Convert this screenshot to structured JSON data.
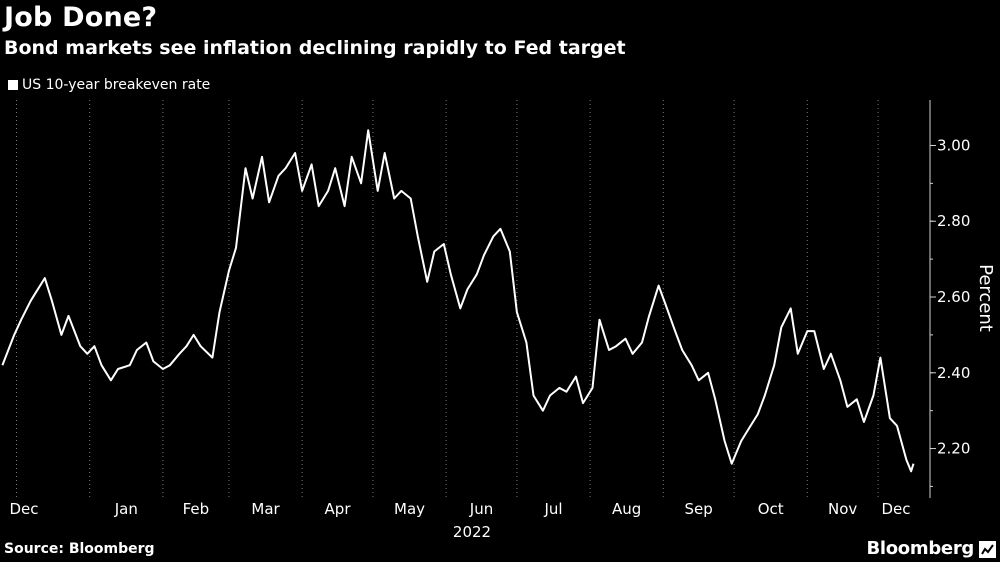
{
  "header": {
    "title": "Job Done?",
    "subtitle": "Bond markets see inflation declining rapidly to Fed target"
  },
  "footer": {
    "source": "Source: Bloomberg",
    "brand": "Bloomberg"
  },
  "colors": {
    "background": "#000000",
    "line": "#ffffff",
    "grid": "#7a7a7a"
  },
  "chart_data": {
    "type": "line",
    "title": "Job Done?",
    "subtitle": "Bond markets see inflation declining rapidly to Fed target",
    "ylabel": "Percent",
    "xlabel": "2022",
    "ylim": [
      2.08,
      3.12
    ],
    "y_ticks": [
      2.2,
      2.4,
      2.6,
      2.8,
      3.0
    ],
    "y_tick_labels": [
      "2.20",
      "2.40",
      "2.60",
      "2.80",
      "3.00"
    ],
    "x_tick_labels": [
      "Dec",
      "Jan",
      "Feb",
      "Mar",
      "Apr",
      "May",
      "Jun",
      "Jul",
      "Aug",
      "Sep",
      "Oct",
      "Nov",
      "Dec"
    ],
    "x_tick_dates": [
      "2021-12-01",
      "2022-01-01",
      "2022-02-01",
      "2022-03-01",
      "2022-04-01",
      "2022-05-01",
      "2022-06-01",
      "2022-07-01",
      "2022-08-01",
      "2022-09-01",
      "2022-10-01",
      "2022-11-01",
      "2022-12-01"
    ],
    "grid": "vertical dotted at month boundaries",
    "legend_position": "top-left",
    "series": [
      {
        "name": "US 10-year breakeven rate",
        "points": [
          [
            "2021-11-25",
            2.42
          ],
          [
            "2021-11-30",
            2.5
          ],
          [
            "2021-12-03",
            2.54
          ],
          [
            "2021-12-07",
            2.59
          ],
          [
            "2021-12-09",
            2.61
          ],
          [
            "2021-12-13",
            2.65
          ],
          [
            "2021-12-16",
            2.59
          ],
          [
            "2021-12-20",
            2.5
          ],
          [
            "2021-12-23",
            2.55
          ],
          [
            "2021-12-28",
            2.47
          ],
          [
            "2021-12-31",
            2.45
          ],
          [
            "2022-01-03",
            2.47
          ],
          [
            "2022-01-06",
            2.42
          ],
          [
            "2022-01-10",
            2.38
          ],
          [
            "2022-01-13",
            2.41
          ],
          [
            "2022-01-18",
            2.42
          ],
          [
            "2022-01-21",
            2.46
          ],
          [
            "2022-01-25",
            2.48
          ],
          [
            "2022-01-28",
            2.43
          ],
          [
            "2022-02-01",
            2.41
          ],
          [
            "2022-02-04",
            2.42
          ],
          [
            "2022-02-08",
            2.45
          ],
          [
            "2022-02-11",
            2.47
          ],
          [
            "2022-02-14",
            2.5
          ],
          [
            "2022-02-17",
            2.47
          ],
          [
            "2022-02-22",
            2.44
          ],
          [
            "2022-02-25",
            2.56
          ],
          [
            "2022-03-01",
            2.67
          ],
          [
            "2022-03-04",
            2.73
          ],
          [
            "2022-03-08",
            2.94
          ],
          [
            "2022-03-11",
            2.86
          ],
          [
            "2022-03-15",
            2.97
          ],
          [
            "2022-03-18",
            2.85
          ],
          [
            "2022-03-22",
            2.92
          ],
          [
            "2022-03-25",
            2.94
          ],
          [
            "2022-03-29",
            2.98
          ],
          [
            "2022-04-01",
            2.88
          ],
          [
            "2022-04-05",
            2.95
          ],
          [
            "2022-04-08",
            2.84
          ],
          [
            "2022-04-12",
            2.88
          ],
          [
            "2022-04-15",
            2.94
          ],
          [
            "2022-04-19",
            2.84
          ],
          [
            "2022-04-22",
            2.97
          ],
          [
            "2022-04-26",
            2.9
          ],
          [
            "2022-04-29",
            3.04
          ],
          [
            "2022-05-03",
            2.88
          ],
          [
            "2022-05-06",
            2.98
          ],
          [
            "2022-05-10",
            2.86
          ],
          [
            "2022-05-13",
            2.88
          ],
          [
            "2022-05-17",
            2.86
          ],
          [
            "2022-05-20",
            2.76
          ],
          [
            "2022-05-24",
            2.64
          ],
          [
            "2022-05-27",
            2.72
          ],
          [
            "2022-05-31",
            2.74
          ],
          [
            "2022-06-03",
            2.66
          ],
          [
            "2022-06-07",
            2.57
          ],
          [
            "2022-06-10",
            2.62
          ],
          [
            "2022-06-14",
            2.66
          ],
          [
            "2022-06-17",
            2.71
          ],
          [
            "2022-06-21",
            2.76
          ],
          [
            "2022-06-24",
            2.78
          ],
          [
            "2022-06-28",
            2.72
          ],
          [
            "2022-07-01",
            2.56
          ],
          [
            "2022-07-05",
            2.48
          ],
          [
            "2022-07-08",
            2.34
          ],
          [
            "2022-07-12",
            2.3
          ],
          [
            "2022-07-15",
            2.34
          ],
          [
            "2022-07-19",
            2.36
          ],
          [
            "2022-07-22",
            2.35
          ],
          [
            "2022-07-26",
            2.39
          ],
          [
            "2022-07-29",
            2.32
          ],
          [
            "2022-08-02",
            2.36
          ],
          [
            "2022-08-05",
            2.54
          ],
          [
            "2022-08-09",
            2.46
          ],
          [
            "2022-08-12",
            2.47
          ],
          [
            "2022-08-16",
            2.49
          ],
          [
            "2022-08-19",
            2.45
          ],
          [
            "2022-08-23",
            2.48
          ],
          [
            "2022-08-26",
            2.55
          ],
          [
            "2022-08-30",
            2.63
          ],
          [
            "2022-09-02",
            2.58
          ],
          [
            "2022-09-06",
            2.51
          ],
          [
            "2022-09-09",
            2.46
          ],
          [
            "2022-09-13",
            2.42
          ],
          [
            "2022-09-16",
            2.38
          ],
          [
            "2022-09-20",
            2.4
          ],
          [
            "2022-09-23",
            2.33
          ],
          [
            "2022-09-27",
            2.22
          ],
          [
            "2022-09-30",
            2.16
          ],
          [
            "2022-10-04",
            2.22
          ],
          [
            "2022-10-07",
            2.25
          ],
          [
            "2022-10-11",
            2.29
          ],
          [
            "2022-10-14",
            2.34
          ],
          [
            "2022-10-18",
            2.42
          ],
          [
            "2022-10-21",
            2.52
          ],
          [
            "2022-10-25",
            2.57
          ],
          [
            "2022-10-28",
            2.45
          ],
          [
            "2022-11-01",
            2.51
          ],
          [
            "2022-11-04",
            2.51
          ],
          [
            "2022-11-08",
            2.41
          ],
          [
            "2022-11-11",
            2.45
          ],
          [
            "2022-11-15",
            2.38
          ],
          [
            "2022-11-18",
            2.31
          ],
          [
            "2022-11-22",
            2.33
          ],
          [
            "2022-11-25",
            2.27
          ],
          [
            "2022-11-29",
            2.34
          ],
          [
            "2022-12-02",
            2.44
          ],
          [
            "2022-12-06",
            2.28
          ],
          [
            "2022-12-09",
            2.26
          ],
          [
            "2022-12-13",
            2.17
          ],
          [
            "2022-12-15",
            2.14
          ],
          [
            "2022-12-16",
            2.16
          ]
        ]
      }
    ]
  }
}
